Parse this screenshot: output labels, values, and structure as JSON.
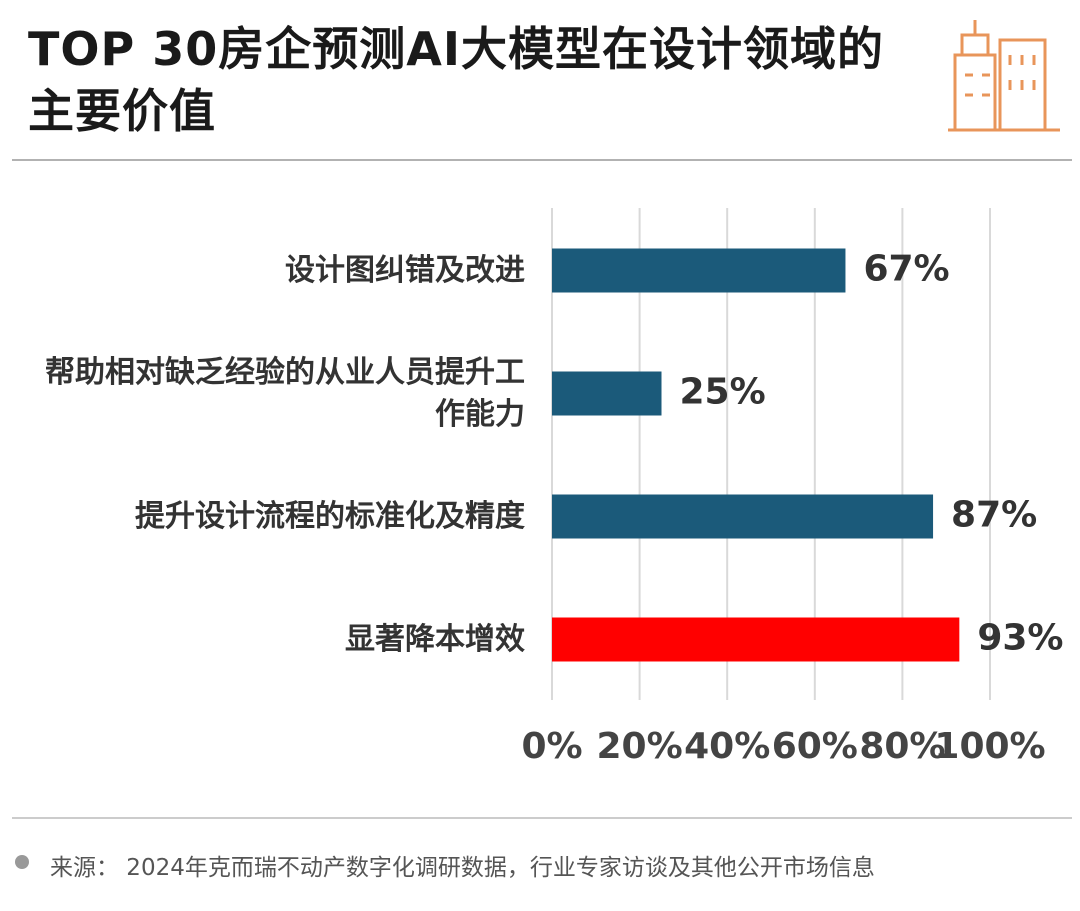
{
  "chart_data": {
    "type": "hbar",
    "title": "TOP 30房企预测AI大模型在设计领域的主要价值",
    "categories": [
      "设计图纠错及改进",
      "帮助相对缺乏经验的从业人员提升工作能力",
      "提升设计流程的标准化及精度",
      "显著降本增效"
    ],
    "values": [
      67,
      25,
      87,
      93
    ],
    "value_labels": [
      "67%",
      "25%",
      "87%",
      "93%"
    ],
    "colors": [
      "#1b5a7a",
      "#1b5a7a",
      "#1b5a7a",
      "#ff0000"
    ],
    "xlim": [
      0,
      100
    ],
    "xticks": [
      {
        "value": 0,
        "label": "0%"
      },
      {
        "value": 20,
        "label": "20%"
      },
      {
        "value": 40,
        "label": "40%"
      },
      {
        "value": 60,
        "label": "60%"
      },
      {
        "value": 80,
        "label": "80%"
      },
      {
        "value": 100,
        "label": "100%"
      }
    ],
    "grid": true,
    "source": "来源：  2024年克而瑞不动产数字化调研数据，行业专家访谈及其他公开市场信息"
  }
}
